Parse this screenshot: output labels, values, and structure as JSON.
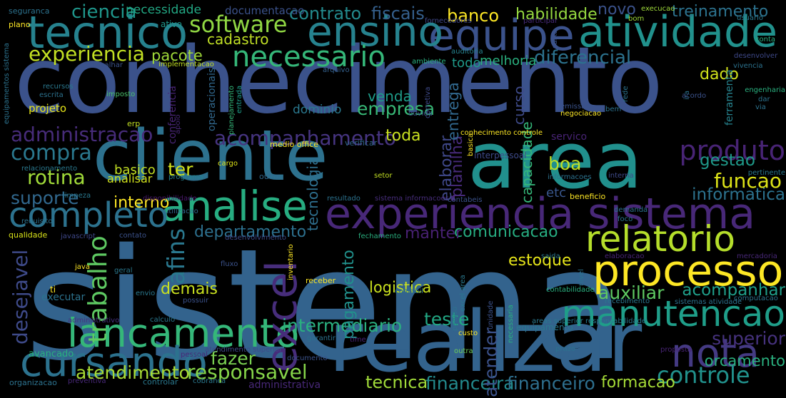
{
  "words": [
    {
      "text": "sistema",
      "color": "#33638d"
    },
    {
      "text": "conhecimento",
      "color": "#3b528b"
    },
    {
      "text": "cliente",
      "color": "#2d718e"
    },
    {
      "text": "area",
      "color": "#21908d"
    },
    {
      "text": "realizar",
      "color": "#33638d"
    },
    {
      "text": "experiencia sistema",
      "color": "#482878"
    },
    {
      "text": "processo",
      "color": "#fde725"
    },
    {
      "text": "relatorio",
      "color": "#b5de2b"
    },
    {
      "text": "tecnico",
      "color": "#26828e"
    },
    {
      "text": "equipe",
      "color": "#3b528b"
    },
    {
      "text": "atividade",
      "color": "#21918c"
    },
    {
      "text": "ensino",
      "color": "#26828e"
    },
    {
      "text": "necessario",
      "color": "#35b779"
    },
    {
      "text": "analise",
      "color": "#27ad81"
    },
    {
      "text": "completo",
      "color": "#2c728e"
    },
    {
      "text": "lancamento",
      "color": "#35b779"
    },
    {
      "text": "cursando",
      "color": "#2c728e"
    },
    {
      "text": "manutencao",
      "color": "#1f9e89"
    },
    {
      "text": "nota",
      "color": "#443a83"
    },
    {
      "text": "controle",
      "color": "#21918c"
    },
    {
      "text": "excel",
      "color": "#472d7b"
    },
    {
      "text": "desejavel",
      "color": "#3e4a89"
    },
    {
      "text": "trabalho",
      "color": "#5ec962"
    },
    {
      "text": "afins",
      "color": "#2a788e"
    },
    {
      "text": "software",
      "color": "#90d743"
    },
    {
      "text": "experiencia",
      "color": "#c2df23"
    },
    {
      "text": "produto",
      "color": "#482475"
    },
    {
      "text": "administracao",
      "color": "#472c7a"
    },
    {
      "text": "acompanhamento",
      "color": "#463480"
    },
    {
      "text": "compra",
      "color": "#2a788e"
    },
    {
      "text": "rotina",
      "color": "#a0da39"
    },
    {
      "text": "suporte",
      "color": "#31688e"
    },
    {
      "text": "diferencial",
      "color": "#2c728e"
    },
    {
      "text": "responsavel",
      "color": "#86d549"
    },
    {
      "text": "atendimento",
      "color": "#a8db34"
    },
    {
      "text": "fazer",
      "color": "#7ad151"
    },
    {
      "text": "tecnica",
      "color": "#a0da39"
    },
    {
      "text": "financeira",
      "color": "#238a8d"
    },
    {
      "text": "financeiro",
      "color": "#2e6f8e"
    },
    {
      "text": "formacao",
      "color": "#a5db36"
    },
    {
      "text": "orcamento",
      "color": "#2ab07f"
    },
    {
      "text": "superior",
      "color": "#46327e"
    },
    {
      "text": "acompanhar",
      "color": "#1f9e89"
    },
    {
      "text": "auxiliar",
      "color": "#5ec962"
    },
    {
      "text": "estoque",
      "color": "#e5e419"
    },
    {
      "text": "logistica",
      "color": "#cae11f"
    },
    {
      "text": "teste",
      "color": "#22a884"
    },
    {
      "text": "intermediario",
      "color": "#2ab07f"
    },
    {
      "text": "atender",
      "color": "#3b528b"
    },
    {
      "text": "pagamento",
      "color": "#21918c"
    },
    {
      "text": "tecnologia",
      "color": "#2e6f8e"
    },
    {
      "text": "elaborar",
      "color": "#3f4889"
    },
    {
      "text": "planilha",
      "color": "#472a7a"
    },
    {
      "text": "capacidade",
      "color": "#35b779"
    },
    {
      "text": "informatica",
      "color": "#2c728e"
    },
    {
      "text": "funcao",
      "color": "#dde318"
    },
    {
      "text": "gestao",
      "color": "#1f9a8a"
    },
    {
      "text": "boa",
      "color": "#bddf26"
    },
    {
      "text": "etc",
      "color": "#39568c"
    },
    {
      "text": "comunicacao",
      "color": "#27ad81"
    },
    {
      "text": "manter",
      "color": "#482173"
    },
    {
      "text": "departamento",
      "color": "#2d708e"
    },
    {
      "text": "interno",
      "color": "#fde725"
    },
    {
      "text": "basico",
      "color": "#c2df23"
    },
    {
      "text": "ter",
      "color": "#d2e21b"
    },
    {
      "text": "analisar",
      "color": "#d0e11c"
    },
    {
      "text": "demais",
      "color": "#cae11f"
    },
    {
      "text": "toda",
      "color": "#c8e020"
    },
    {
      "text": "empresa",
      "color": "#38b977"
    },
    {
      "text": "venda",
      "color": "#1e9c89"
    },
    {
      "text": "dominio",
      "color": "#2a788e"
    },
    {
      "text": "curso",
      "color": "#3e4a89"
    },
    {
      "text": "entrega",
      "color": "#31688e"
    },
    {
      "text": "todo",
      "color": "#1f9a8a"
    },
    {
      "text": "melhoria",
      "color": "#2ab07f"
    },
    {
      "text": "dado",
      "color": "#d2e21b"
    },
    {
      "text": "pacote",
      "color": "#a0da39"
    },
    {
      "text": "cadastro",
      "color": "#c0df25"
    },
    {
      "text": "banco",
      "color": "#fde725"
    },
    {
      "text": "habilidade",
      "color": "#95d840"
    },
    {
      "text": "novo",
      "color": "#3b528b"
    },
    {
      "text": "treinamento",
      "color": "#2c728e"
    },
    {
      "text": "contrato",
      "color": "#238a8d"
    },
    {
      "text": "fiscais",
      "color": "#35608d"
    },
    {
      "text": "ciencia",
      "color": "#1f968b"
    },
    {
      "text": "necessidade",
      "color": "#22a884"
    },
    {
      "text": "documentacao",
      "color": "#3b528b"
    },
    {
      "text": "execucao",
      "color": "#9fda3a"
    },
    {
      "text": "usuario",
      "color": "#2a788e"
    },
    {
      "text": "conta",
      "color": "#2ab07f"
    },
    {
      "text": "desenvolver",
      "color": "#3e4989"
    },
    {
      "text": "vivencia",
      "color": "#2c728e"
    },
    {
      "text": "bom",
      "color": "#9fda3a"
    },
    {
      "text": "fornecedores",
      "color": "#3f4788"
    },
    {
      "text": "participar",
      "color": "#472a7a"
    },
    {
      "text": "caixa",
      "color": "#3b528b"
    },
    {
      "text": "auditoria",
      "color": "#26828e"
    },
    {
      "text": "ambiente",
      "color": "#2ab07f"
    },
    {
      "text": "arquivo",
      "color": "#34618d"
    },
    {
      "text": "implementacao",
      "color": "#c2df23"
    },
    {
      "text": "trabalhar",
      "color": "#3b528b"
    },
    {
      "text": "ativo",
      "color": "#1f968b"
    },
    {
      "text": "plano",
      "color": "#fde725"
    },
    {
      "text": "seguranca",
      "color": "#2c728e"
    },
    {
      "text": "equipamentos sistema",
      "color": "#2c728e"
    },
    {
      "text": "recursos",
      "color": "#2a788e"
    },
    {
      "text": "escrita",
      "color": "#2c728e"
    },
    {
      "text": "imposto",
      "color": "#4ac16d"
    },
    {
      "text": "projeto",
      "color": "#e5e419"
    },
    {
      "text": "conferencia",
      "color": "#482475"
    },
    {
      "text": "operacionais",
      "color": "#31688e"
    },
    {
      "text": "planejamento",
      "color": "#35b779"
    },
    {
      "text": "entrada",
      "color": "#1f9e89"
    },
    {
      "text": "erp",
      "color": "#c2df23"
    },
    {
      "text": "apoio",
      "color": "#482878"
    },
    {
      "text": "relacionamento",
      "color": "#2a788e"
    },
    {
      "text": "medio office",
      "color": "#fde725"
    },
    {
      "text": "verificar",
      "color": "#31688e"
    },
    {
      "text": "cargo",
      "color": "#dde318"
    },
    {
      "text": "outro",
      "color": "#31688e"
    },
    {
      "text": "setor",
      "color": "#c2df23"
    },
    {
      "text": "programa",
      "color": "#26828e"
    },
    {
      "text": "limpeza",
      "color": "#2a788e"
    },
    {
      "text": "disponibilidade",
      "color": "#48186a"
    },
    {
      "text": "utilizacao",
      "color": "#31688e"
    },
    {
      "text": "resultado",
      "color": "#2c728e"
    },
    {
      "text": "sistema informacoes",
      "color": "#472d7b"
    },
    {
      "text": "contabeis",
      "color": "#3b528b"
    },
    {
      "text": "requisito",
      "color": "#2c728e"
    },
    {
      "text": "qualidade",
      "color": "#d8e219"
    },
    {
      "text": "javascript",
      "color": "#3f4889"
    },
    {
      "text": "contato",
      "color": "#3b528b"
    },
    {
      "text": "desenvolvimento",
      "color": "#3e4989"
    },
    {
      "text": "fechamento",
      "color": "#2ab07f"
    },
    {
      "text": "java",
      "color": "#fde725"
    },
    {
      "text": "geral",
      "color": "#2a788e"
    },
    {
      "text": "fluxo",
      "color": "#3b528b"
    },
    {
      "text": "inventario",
      "color": "#fde725"
    },
    {
      "text": "ti",
      "color": "#fde725"
    },
    {
      "text": "executar",
      "color": "#2c728e"
    },
    {
      "text": "envio",
      "color": "#2a788e"
    },
    {
      "text": "possuir",
      "color": "#3b528b"
    },
    {
      "text": "receber",
      "color": "#fde725"
    },
    {
      "text": "contabil",
      "color": "#2c728e"
    },
    {
      "text": "administrativo",
      "color": "#46327e"
    },
    {
      "text": "calculo",
      "color": "#2a788e"
    },
    {
      "text": "avancado",
      "color": "#2ab07f"
    },
    {
      "text": "pessoal",
      "color": "#482878"
    },
    {
      "text": "atendimento superior",
      "color": "#3e4a89"
    },
    {
      "text": "garantir",
      "color": "#2c728e"
    },
    {
      "text": "time",
      "color": "#482475"
    },
    {
      "text": "documento",
      "color": "#3b528b"
    },
    {
      "text": "organizacao",
      "color": "#2c728e"
    },
    {
      "text": "preventiva",
      "color": "#482878"
    },
    {
      "text": "controlar",
      "color": "#2a788e"
    },
    {
      "text": "cobranca",
      "color": "#2a788e"
    },
    {
      "text": "administrativa",
      "color": "#482878"
    },
    {
      "text": "outra",
      "color": "#6ccd5a"
    },
    {
      "text": "custo",
      "color": "#fde725"
    },
    {
      "text": "prazo",
      "color": "#2c728e"
    },
    {
      "text": "proposta",
      "color": "#482475"
    },
    {
      "text": "equipamento",
      "color": "#2a788e"
    },
    {
      "text": "areas superior responsabilidade",
      "color": "#2a788e"
    },
    {
      "text": "necessaria",
      "color": "#2ab07f"
    },
    {
      "text": "unidade",
      "color": "#3b528b"
    },
    {
      "text": "excel area",
      "color": "#2a788e"
    },
    {
      "text": "pedido",
      "color": "#2c728e"
    },
    {
      "text": "contabilidade",
      "color": "#2ab07f"
    },
    {
      "text": "nivel",
      "color": "#2c728e"
    },
    {
      "text": "recebimento",
      "color": "#2a788e"
    },
    {
      "text": "sistemas atividade",
      "color": "#2c728e"
    },
    {
      "text": "computacao",
      "color": "#2c728e"
    },
    {
      "text": "saida",
      "color": "#2a788e"
    },
    {
      "text": "elaboracao",
      "color": "#482475"
    },
    {
      "text": "mercadoria",
      "color": "#482878"
    },
    {
      "text": "servico",
      "color": "#482475"
    },
    {
      "text": "conhecimento controle",
      "color": "#fde725"
    },
    {
      "text": "interpessoal",
      "color": "#3e4a89"
    },
    {
      "text": "basica",
      "color": "#fde725"
    },
    {
      "text": "informacoes",
      "color": "#2c728e"
    },
    {
      "text": "interna",
      "color": "#3e4a89"
    },
    {
      "text": "beneficio",
      "color": "#fde725"
    },
    {
      "text": "demanda",
      "color": "#2c728e"
    },
    {
      "text": "foco",
      "color": "#2c728e"
    },
    {
      "text": "ira",
      "color": "#2c728e"
    },
    {
      "text": "pertinente",
      "color": "#2a788e"
    },
    {
      "text": "ferramenta",
      "color": "#26828e"
    },
    {
      "text": "engenharia",
      "color": "#2ab07f"
    },
    {
      "text": "dar",
      "color": "#2c728e"
    },
    {
      "text": "via",
      "color": "#2c728e"
    },
    {
      "text": "acordo",
      "color": "#3b528b"
    },
    {
      "text": "bem",
      "color": "#2c728e"
    },
    {
      "text": "rede",
      "color": "#2c728e"
    },
    {
      "text": "emissao",
      "color": "#3b528b"
    },
    {
      "text": "negociacao",
      "color": "#fde725"
    },
    {
      "text": "corretiva",
      "color": "#3e4a89"
    },
    {
      "text": "duvida",
      "color": "#3b528b"
    },
    {
      "text": "problema",
      "color": "#2c728e"
    }
  ]
}
